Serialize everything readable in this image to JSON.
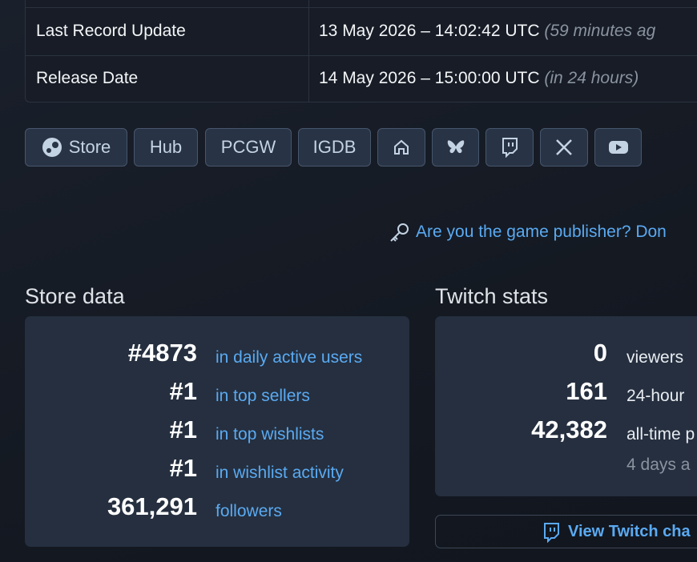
{
  "info_table": {
    "rows": [
      {
        "label": "Last Record Update",
        "value": "13 May 2026 – 14:02:42 UTC",
        "note": "(59 minutes ag"
      },
      {
        "label": "Release Date",
        "value": "14 May 2026 – 15:00:00 UTC",
        "note": "(in 24 hours)"
      }
    ]
  },
  "links": {
    "buttons": [
      "Store",
      "Hub",
      "PCGW",
      "IGDB"
    ]
  },
  "publisher_link": "Are you the game publisher? Don",
  "store_data": {
    "title": "Store data",
    "rows": [
      {
        "value": "#4873",
        "label": "in daily active users"
      },
      {
        "value": "#1",
        "label": "in top sellers"
      },
      {
        "value": "#1",
        "label": "in top wishlists"
      },
      {
        "value": "#1",
        "label": "in wishlist activity"
      },
      {
        "value": "361,291",
        "label": "followers"
      }
    ]
  },
  "twitch_stats": {
    "title": "Twitch stats",
    "rows": [
      {
        "value": "0",
        "label": "viewers"
      },
      {
        "value": "161",
        "label": "24-hour"
      },
      {
        "value": "42,382",
        "label": "all-time p",
        "note": "4 days a"
      }
    ],
    "button": "View Twitch cha"
  }
}
